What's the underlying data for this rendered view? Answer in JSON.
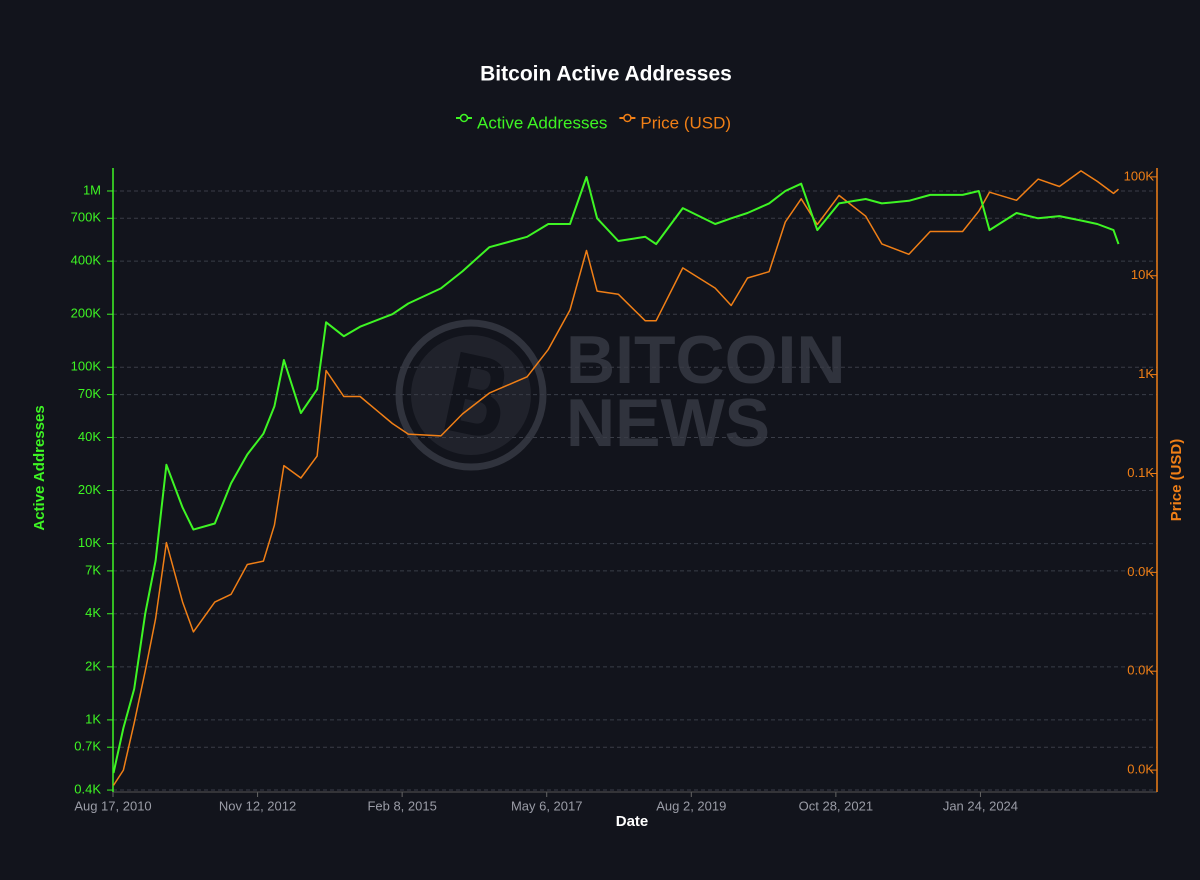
{
  "chart_data": {
    "type": "line",
    "title": "Bitcoin Active Addresses",
    "xlabel": "Date",
    "ylabel": "Active Addresses",
    "y2label": "Price (USD)",
    "watermark": [
      "BITCOIN",
      "NEWS"
    ],
    "log_y": true,
    "log_y2": true,
    "grid": true,
    "legend": "top",
    "x": [
      "2010-08-20",
      "2010-10-15",
      "2010-12-15",
      "2011-02-15",
      "2011-04-15",
      "2011-06-15",
      "2011-09-15",
      "2011-11-15",
      "2012-03-15",
      "2012-06-15",
      "2012-09-15",
      "2012-12-15",
      "2013-02-15",
      "2013-04-10",
      "2013-07-15",
      "2013-10-15",
      "2013-12-05",
      "2014-03-15",
      "2014-06-15",
      "2014-12-15",
      "2015-03-15",
      "2015-09-15",
      "2016-01-15",
      "2016-06-15",
      "2017-01-15",
      "2017-05-15",
      "2017-09-15",
      "2017-12-17",
      "2018-02-15",
      "2018-06-15",
      "2018-11-15",
      "2019-01-15",
      "2019-06-15",
      "2019-12-15",
      "2020-03-15",
      "2020-06-15",
      "2020-10-15",
      "2021-01-15",
      "2021-04-15",
      "2021-07-15",
      "2021-11-15",
      "2022-04-15",
      "2022-07-15",
      "2022-12-15",
      "2023-04-15",
      "2023-10-15",
      "2024-01-15",
      "2024-03-15",
      "2024-08-15",
      "2024-12-15",
      "2025-04-15",
      "2025-08-15",
      "2025-11-15",
      "2026-02-15",
      "2026-03-15"
    ],
    "series": [
      {
        "name": "Active Addresses",
        "color": "#3ef524",
        "axis": "y",
        "values": [
          500,
          900,
          1500,
          4000,
          8000,
          28000,
          16000,
          12000,
          13000,
          22000,
          32000,
          42000,
          60000,
          110000,
          55000,
          75000,
          180000,
          150000,
          170000,
          200000,
          230000,
          280000,
          350000,
          480000,
          550000,
          650000,
          650000,
          1200000,
          700000,
          520000,
          550000,
          500000,
          800000,
          650000,
          700000,
          750000,
          850000,
          1000000,
          1100000,
          600000,
          850000,
          900000,
          850000,
          880000,
          950000,
          950000,
          1000000,
          600000,
          750000,
          700000,
          720000,
          680000,
          650000,
          600000,
          500000
        ]
      },
      {
        "name": "Price (USD)",
        "color": "#f07f16",
        "axis": "y2",
        "values": [
          0.07,
          0.1,
          0.3,
          1,
          3.4,
          20,
          5,
          2.5,
          5,
          6,
          12,
          13,
          30,
          120,
          90,
          150,
          1100,
          600,
          600,
          320,
          250,
          240,
          400,
          650,
          950,
          1800,
          4500,
          18000,
          7000,
          6500,
          3500,
          3500,
          12000,
          7500,
          5000,
          9500,
          11000,
          35000,
          60000,
          33000,
          65000,
          40000,
          21000,
          16500,
          28000,
          28000,
          45000,
          70000,
          58000,
          95000,
          80000,
          115000,
          90000,
          68000,
          75000
        ]
      }
    ],
    "xlim": [
      "2010-08-17",
      "2026-10-19"
    ],
    "xticks": [
      {
        "value": "2010-08-17",
        "label": "Aug 17, 2010"
      },
      {
        "value": "2012-11-12",
        "label": "Nov 12, 2012"
      },
      {
        "value": "2015-02-08",
        "label": "Feb 8, 2015"
      },
      {
        "value": "2017-05-06",
        "label": "May 6, 2017"
      },
      {
        "value": "2019-08-02",
        "label": "Aug 2, 2019"
      },
      {
        "value": "2021-10-28",
        "label": "Oct 28, 2021"
      },
      {
        "value": "2024-01-24",
        "label": "Jan 24, 2024"
      }
    ],
    "ylim": [
      390,
      1350000
    ],
    "yticks": [
      {
        "value": 400,
        "label": "0.4K"
      },
      {
        "value": 700,
        "label": "0.7K"
      },
      {
        "value": 1000,
        "label": "1K"
      },
      {
        "value": 2000,
        "label": "2K"
      },
      {
        "value": 4000,
        "label": "4K"
      },
      {
        "value": 7000,
        "label": "7K"
      },
      {
        "value": 10000,
        "label": "10K"
      },
      {
        "value": 20000,
        "label": "20K"
      },
      {
        "value": 40000,
        "label": "40K"
      },
      {
        "value": 70000,
        "label": "70K"
      },
      {
        "value": 100000,
        "label": "100K"
      },
      {
        "value": 200000,
        "label": "200K"
      },
      {
        "value": 400000,
        "label": "400K"
      },
      {
        "value": 700000,
        "label": "700K"
      },
      {
        "value": 1000000,
        "label": "1M"
      }
    ],
    "y2lim": [
      0.06,
      123000
    ],
    "y2ticks": [
      {
        "value": 100000,
        "label": "100K"
      },
      {
        "value": 10000,
        "label": "10K"
      },
      {
        "value": 1000,
        "label": "1K"
      },
      {
        "value": 100,
        "label": "0.1K"
      },
      {
        "value": 10,
        "label": "0.0K"
      },
      {
        "value": 1,
        "label": "0.0K"
      },
      {
        "value": 0.1,
        "label": "0.0K"
      }
    ]
  }
}
